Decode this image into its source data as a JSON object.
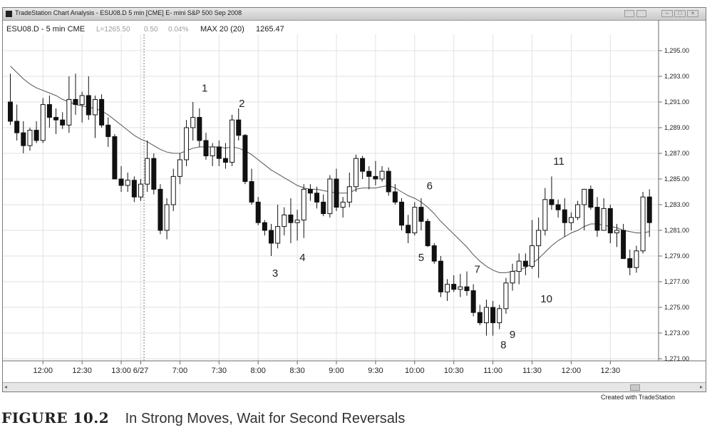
{
  "window": {
    "title": "TradeStation Chart Analysis - ESU08.D 5 min [CME] E- mini S&P 500 Sep 2008",
    "icon": "chart-app-icon"
  },
  "status": {
    "symbol": "ESU08.D - 5 min CME",
    "last": "L=1265.50",
    "change": "0.50",
    "pct": "0.04%",
    "indicator": "MAX 20 (20)",
    "indicator_value": "1265.47"
  },
  "credit": "Created with TradeStation",
  "caption": {
    "label": "FIGURE 10.2",
    "text": "In Strong Moves, Wait for Second Reversals"
  },
  "chart_data": {
    "type": "candlestick",
    "y_ticks": [
      "1,295.00",
      "1,293.00",
      "1,291.00",
      "1,289.00",
      "1,287.00",
      "1,285.00",
      "1,283.00",
      "1,281.00",
      "1,279.00",
      "1,277.00",
      "1,275.00",
      "1,273.00",
      "1,271.00"
    ],
    "ylim": [
      1270,
      1297
    ],
    "x_ticks": [
      {
        "label": "12:00",
        "bar": 5
      },
      {
        "label": "12:30",
        "bar": 11
      },
      {
        "label": "13:00",
        "bar": 17
      },
      {
        "label": "6/27",
        "bar": 20
      },
      {
        "label": "7:00",
        "bar": 26
      },
      {
        "label": "7:30",
        "bar": 32
      },
      {
        "label": "8:00",
        "bar": 38
      },
      {
        "label": "8:30",
        "bar": 44
      },
      {
        "label": "9:00",
        "bar": 50
      },
      {
        "label": "9:30",
        "bar": 56
      },
      {
        "label": "10:00",
        "bar": 62
      },
      {
        "label": "10:30",
        "bar": 68
      },
      {
        "label": "11:00",
        "bar": 74
      },
      {
        "label": "11:30",
        "bar": 80
      },
      {
        "label": "12:00",
        "bar": 86
      },
      {
        "label": "12:30",
        "bar": 92
      }
    ],
    "session_break_bar": 20.5,
    "bars": [
      [
        1291.0,
        1293.2,
        1289.2,
        1289.5
      ],
      [
        1289.5,
        1290.8,
        1288.0,
        1288.6
      ],
      [
        1288.6,
        1289.5,
        1287.0,
        1287.6
      ],
      [
        1287.6,
        1289.0,
        1287.2,
        1288.8
      ],
      [
        1288.8,
        1289.5,
        1287.8,
        1288.0
      ],
      [
        1288.0,
        1291.3,
        1287.8,
        1290.8
      ],
      [
        1290.8,
        1291.5,
        1289.0,
        1289.8
      ],
      [
        1289.8,
        1290.5,
        1288.5,
        1289.6
      ],
      [
        1289.6,
        1290.2,
        1288.9,
        1289.2
      ],
      [
        1289.2,
        1293.0,
        1288.6,
        1291.2
      ],
      [
        1291.2,
        1293.2,
        1290.0,
        1290.8
      ],
      [
        1290.8,
        1291.8,
        1289.4,
        1291.5
      ],
      [
        1291.5,
        1293.0,
        1289.6,
        1290.0
      ],
      [
        1290.0,
        1291.5,
        1288.2,
        1291.2
      ],
      [
        1291.2,
        1291.6,
        1289.0,
        1289.2
      ],
      [
        1289.2,
        1289.8,
        1287.5,
        1288.3
      ],
      [
        1288.3,
        1288.5,
        1285.0,
        1285.0
      ],
      [
        1285.0,
        1286.0,
        1284.0,
        1284.5
      ],
      [
        1284.5,
        1285.5,
        1284.0,
        1284.9
      ],
      [
        1284.9,
        1285.2,
        1283.2,
        1283.6
      ],
      [
        1283.6,
        1285.0,
        1283.3,
        1284.6
      ],
      [
        1284.6,
        1288.0,
        1284.0,
        1286.6
      ],
      [
        1286.6,
        1287.0,
        1283.8,
        1284.2
      ],
      [
        1284.2,
        1284.6,
        1280.7,
        1281.0
      ],
      [
        1281.0,
        1283.5,
        1280.3,
        1283.0
      ],
      [
        1283.0,
        1285.8,
        1282.5,
        1285.2
      ],
      [
        1285.2,
        1287.0,
        1284.6,
        1286.5
      ],
      [
        1286.5,
        1289.6,
        1286.0,
        1289.0
      ],
      [
        1289.0,
        1291.0,
        1288.0,
        1289.8
      ],
      [
        1289.8,
        1290.5,
        1287.5,
        1288.0
      ],
      [
        1288.0,
        1288.6,
        1286.5,
        1286.8
      ],
      [
        1286.8,
        1287.8,
        1286.0,
        1287.5
      ],
      [
        1287.5,
        1288.0,
        1286.0,
        1286.6
      ],
      [
        1286.6,
        1287.8,
        1285.8,
        1286.3
      ],
      [
        1286.3,
        1290.0,
        1286.0,
        1289.6
      ],
      [
        1289.6,
        1290.5,
        1288.0,
        1288.4
      ],
      [
        1288.4,
        1288.5,
        1284.6,
        1284.8
      ],
      [
        1284.8,
        1285.8,
        1283.0,
        1283.2
      ],
      [
        1283.2,
        1283.6,
        1281.4,
        1281.6
      ],
      [
        1281.6,
        1281.8,
        1280.6,
        1281.0
      ],
      [
        1281.0,
        1281.5,
        1279.0,
        1280.0
      ],
      [
        1280.0,
        1283.0,
        1279.6,
        1281.3
      ],
      [
        1281.3,
        1282.8,
        1280.6,
        1282.2
      ],
      [
        1282.2,
        1283.5,
        1280.0,
        1281.6
      ],
      [
        1281.6,
        1282.6,
        1280.2,
        1281.8
      ],
      [
        1281.8,
        1284.6,
        1280.4,
        1284.2
      ],
      [
        1284.2,
        1284.6,
        1283.3,
        1283.9
      ],
      [
        1283.9,
        1284.4,
        1282.7,
        1283.2
      ],
      [
        1283.2,
        1283.8,
        1282.1,
        1282.3
      ],
      [
        1282.3,
        1285.3,
        1282.0,
        1285.0
      ],
      [
        1285.0,
        1285.8,
        1282.5,
        1282.8
      ],
      [
        1282.8,
        1283.6,
        1282.0,
        1283.2
      ],
      [
        1283.2,
        1285.5,
        1282.8,
        1284.4
      ],
      [
        1284.4,
        1286.9,
        1284.0,
        1286.6
      ],
      [
        1286.6,
        1286.8,
        1285.0,
        1285.6
      ],
      [
        1285.6,
        1286.0,
        1284.2,
        1285.2
      ],
      [
        1285.2,
        1286.4,
        1284.5,
        1285.0
      ],
      [
        1285.0,
        1286.0,
        1284.8,
        1285.6
      ],
      [
        1285.6,
        1285.9,
        1283.7,
        1284.0
      ],
      [
        1284.0,
        1284.6,
        1283.0,
        1283.2
      ],
      [
        1283.2,
        1283.5,
        1281.0,
        1281.4
      ],
      [
        1281.4,
        1282.2,
        1280.0,
        1280.8
      ],
      [
        1280.8,
        1283.2,
        1280.6,
        1282.8
      ],
      [
        1282.8,
        1283.5,
        1281.0,
        1281.7
      ],
      [
        1281.7,
        1281.9,
        1279.7,
        1279.8
      ],
      [
        1279.8,
        1280.0,
        1278.4,
        1278.6
      ],
      [
        1278.6,
        1279.0,
        1275.8,
        1276.2
      ],
      [
        1276.2,
        1277.2,
        1275.5,
        1276.8
      ],
      [
        1276.8,
        1277.5,
        1276.2,
        1276.4
      ],
      [
        1276.4,
        1277.6,
        1275.8,
        1276.6
      ],
      [
        1276.6,
        1277.8,
        1275.9,
        1276.3
      ],
      [
        1276.3,
        1276.8,
        1274.3,
        1274.6
      ],
      [
        1274.6,
        1275.2,
        1273.6,
        1273.8
      ],
      [
        1273.8,
        1275.6,
        1272.8,
        1275.0
      ],
      [
        1275.0,
        1275.5,
        1272.8,
        1273.8
      ],
      [
        1273.8,
        1275.2,
        1273.3,
        1274.9
      ],
      [
        1274.9,
        1277.3,
        1274.5,
        1276.9
      ],
      [
        1276.9,
        1278.4,
        1276.3,
        1277.8
      ],
      [
        1277.8,
        1279.2,
        1276.8,
        1278.6
      ],
      [
        1278.6,
        1279.2,
        1277.5,
        1278.2
      ],
      [
        1278.2,
        1281.8,
        1278.0,
        1279.8
      ],
      [
        1279.8,
        1282.0,
        1277.3,
        1281.0
      ],
      [
        1281.0,
        1284.3,
        1280.6,
        1283.4
      ],
      [
        1283.4,
        1285.2,
        1282.6,
        1283.0
      ],
      [
        1283.0,
        1283.4,
        1282.0,
        1282.6
      ],
      [
        1282.6,
        1283.5,
        1280.5,
        1281.6
      ],
      [
        1281.6,
        1282.4,
        1281.0,
        1282.0
      ],
      [
        1282.0,
        1283.3,
        1281.8,
        1283.0
      ],
      [
        1283.0,
        1283.8,
        1281.0,
        1284.2
      ],
      [
        1284.2,
        1284.5,
        1282.6,
        1282.8
      ],
      [
        1282.8,
        1283.6,
        1280.5,
        1281.0
      ],
      [
        1281.0,
        1283.5,
        1281.0,
        1282.7
      ],
      [
        1282.7,
        1283.0,
        1280.0,
        1280.8
      ],
      [
        1280.8,
        1281.5,
        1279.7,
        1281.0
      ],
      [
        1281.0,
        1281.5,
        1278.8,
        1278.8
      ],
      [
        1278.8,
        1279.5,
        1277.5,
        1278.1
      ],
      [
        1278.1,
        1279.8,
        1277.7,
        1279.4
      ],
      [
        1279.4,
        1284.0,
        1279.2,
        1283.6
      ],
      [
        1283.6,
        1284.2,
        1280.5,
        1281.6
      ]
    ],
    "ema": [
      1293.8,
      1293.3,
      1292.8,
      1292.4,
      1292.1,
      1291.9,
      1291.7,
      1291.5,
      1291.2,
      1291.0,
      1290.8,
      1290.7,
      1290.6,
      1290.5,
      1290.3,
      1290.0,
      1289.6,
      1289.2,
      1288.8,
      1288.4,
      1288.1,
      1287.9,
      1287.6,
      1287.3,
      1287.1,
      1287.0,
      1287.0,
      1287.2,
      1287.4,
      1287.5,
      1287.5,
      1287.5,
      1287.5,
      1287.4,
      1287.5,
      1287.4,
      1287.2,
      1286.9,
      1286.5,
      1286.1,
      1285.7,
      1285.4,
      1285.1,
      1284.8,
      1284.5,
      1284.3,
      1284.2,
      1284.2,
      1284.1,
      1284.0,
      1283.9,
      1283.9,
      1283.9,
      1284.2,
      1284.3,
      1284.3,
      1284.3,
      1284.4,
      1284.5,
      1284.3,
      1284.0,
      1283.7,
      1283.5,
      1283.2,
      1282.8,
      1282.3,
      1281.7,
      1281.2,
      1280.7,
      1280.2,
      1279.7,
      1279.1,
      1278.6,
      1278.2,
      1277.9,
      1277.7,
      1277.7,
      1277.8,
      1277.9,
      1278.1,
      1278.4,
      1278.8,
      1279.3,
      1279.8,
      1280.2,
      1280.5,
      1280.8,
      1281.0,
      1281.3,
      1281.5,
      1281.5,
      1281.4,
      1281.3,
      1281.2,
      1281.0,
      1280.9,
      1280.8,
      1280.8,
      1280.9
    ],
    "annotations": [
      {
        "label": "1",
        "bar": 29.8,
        "price": 1291.8
      },
      {
        "label": "2",
        "bar": 35.5,
        "price": 1290.6
      },
      {
        "label": "3",
        "bar": 40.6,
        "price": 1277.4
      },
      {
        "label": "4",
        "bar": 44.8,
        "price": 1278.6
      },
      {
        "label": "5",
        "bar": 63.0,
        "price": 1278.6
      },
      {
        "label": "6",
        "bar": 64.3,
        "price": 1284.2
      },
      {
        "label": "7",
        "bar": 71.6,
        "price": 1277.7
      },
      {
        "label": "8",
        "bar": 75.6,
        "price": 1271.8
      },
      {
        "label": "9",
        "bar": 77.0,
        "price": 1272.6
      },
      {
        "label": "10",
        "bar": 82.2,
        "price": 1275.4
      },
      {
        "label": "11",
        "bar": 84.1,
        "price": 1286.1
      }
    ],
    "grid": true,
    "moving_average_line": true
  }
}
